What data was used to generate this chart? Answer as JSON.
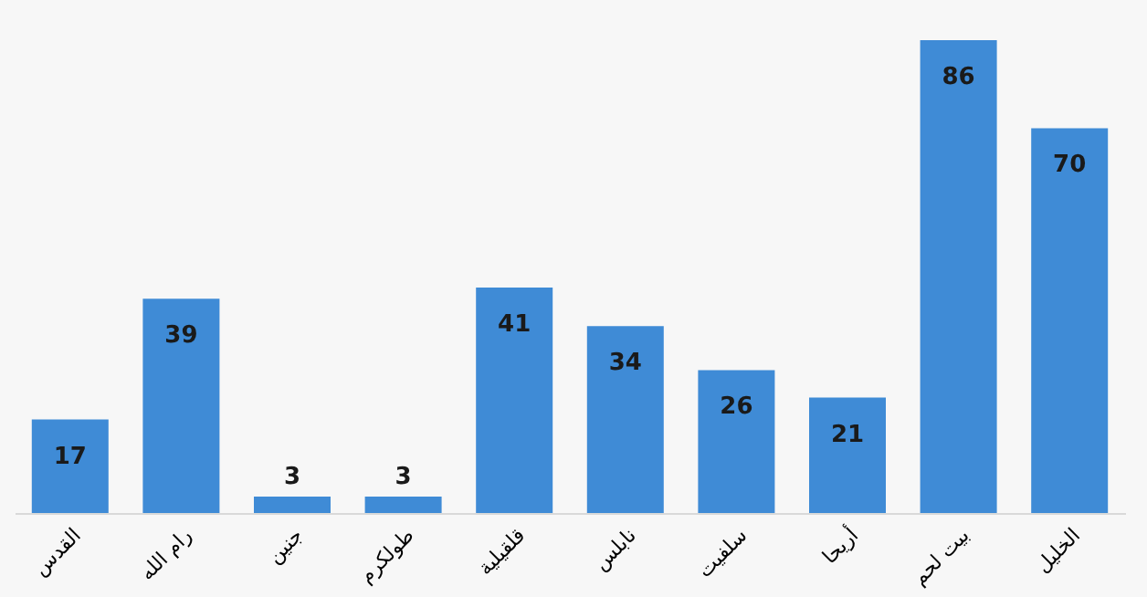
{
  "chart_data": {
    "type": "bar",
    "categories": [
      "القدس",
      "رام الله",
      "جنين",
      "طولكرم",
      "قلقيلية",
      "نابلس",
      "سلفيت",
      "أريحا",
      "بيت لحم",
      "الخليل"
    ],
    "values": [
      17,
      39,
      3,
      3,
      41,
      34,
      26,
      21,
      86,
      70
    ],
    "color": "#3f8bd6",
    "data_labels": true,
    "tick_labels": "x"
  }
}
